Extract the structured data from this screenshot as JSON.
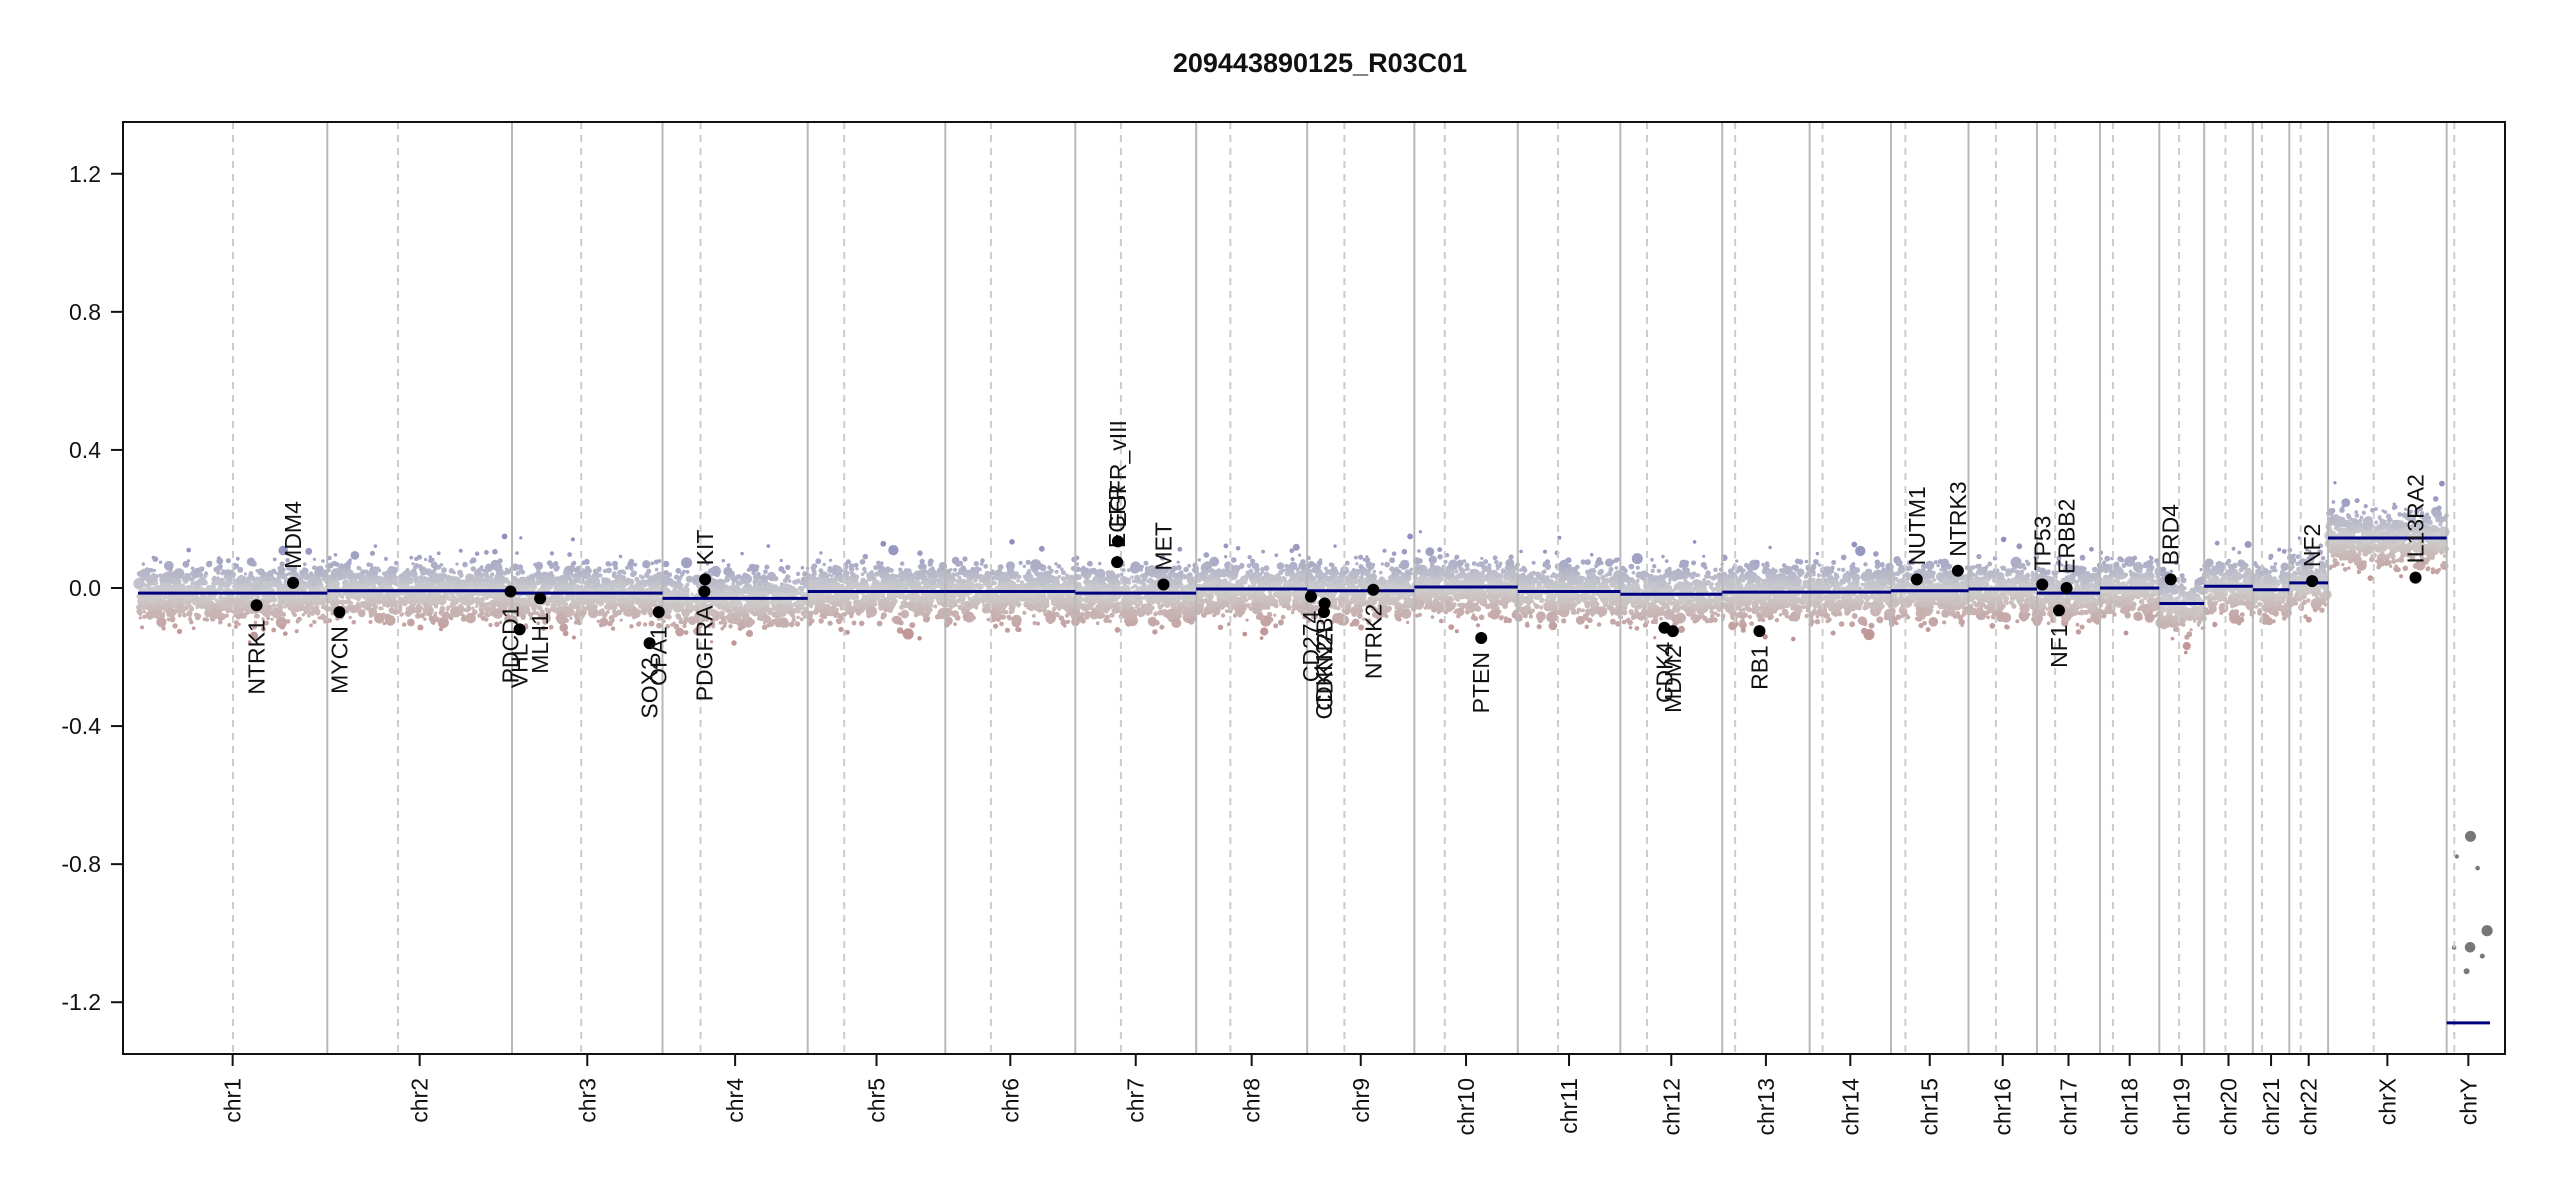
{
  "chart_data": {
    "type": "scatter",
    "title": "209443890125_R03C01",
    "xlabel": "",
    "ylabel": "",
    "ylim": [
      -1.35,
      1.35
    ],
    "yticks": [
      "1.2",
      "0.8",
      "0.4",
      "0.0",
      "-0.4",
      "-0.8",
      "-1.2"
    ],
    "grid": "vertical chromosome boundaries (solid) and centromeres (dashed)",
    "legend": "none",
    "colors": {
      "positive": "#8f90bf",
      "neutral": "#cfcfcf",
      "negative": "#bf8f8f",
      "segment": "#000080",
      "gene_point": "#000000",
      "boundary": "#b8b8b8",
      "centromere": "#cccccc"
    },
    "chromosomes": [
      {
        "name": "chr1",
        "length": 249,
        "centromere": 125
      },
      {
        "name": "chr2",
        "length": 243,
        "centromere": 93
      },
      {
        "name": "chr3",
        "length": 198,
        "centromere": 91
      },
      {
        "name": "chr4",
        "length": 191,
        "centromere": 50
      },
      {
        "name": "chr5",
        "length": 181,
        "centromere": 48
      },
      {
        "name": "chr6",
        "length": 171,
        "centromere": 60
      },
      {
        "name": "chr7",
        "length": 159,
        "centromere": 60
      },
      {
        "name": "chr8",
        "length": 146,
        "centromere": 45
      },
      {
        "name": "chr9",
        "length": 141,
        "centromere": 49
      },
      {
        "name": "chr10",
        "length": 136,
        "centromere": 40
      },
      {
        "name": "chr11",
        "length": 135,
        "centromere": 53
      },
      {
        "name": "chr12",
        "length": 134,
        "centromere": 35
      },
      {
        "name": "chr13",
        "length": 115,
        "centromere": 17
      },
      {
        "name": "chr14",
        "length": 107,
        "centromere": 17
      },
      {
        "name": "chr15",
        "length": 102,
        "centromere": 19
      },
      {
        "name": "chr16",
        "length": 90,
        "centromere": 36
      },
      {
        "name": "chr17",
        "length": 83,
        "centromere": 24
      },
      {
        "name": "chr18",
        "length": 78,
        "centromere": 17
      },
      {
        "name": "chr19",
        "length": 59,
        "centromere": 26
      },
      {
        "name": "chr20",
        "length": 64,
        "centromere": 28
      },
      {
        "name": "chr21",
        "length": 48,
        "centromere": 12
      },
      {
        "name": "chr22",
        "length": 51,
        "centromere": 15
      },
      {
        "name": "chrX",
        "length": 156,
        "centromere": 60
      },
      {
        "name": "chrY",
        "length": 57,
        "centromere": 10
      }
    ],
    "segments": [
      {
        "chr": "chr1",
        "start": 0,
        "end": 249,
        "value": -0.015
      },
      {
        "chr": "chr2",
        "start": 0,
        "end": 243,
        "value": -0.008
      },
      {
        "chr": "chr3",
        "start": 0,
        "end": 198,
        "value": -0.015
      },
      {
        "chr": "chr4",
        "start": 0,
        "end": 191,
        "value": -0.03
      },
      {
        "chr": "chr5",
        "start": 0,
        "end": 181,
        "value": -0.01
      },
      {
        "chr": "chr6",
        "start": 0,
        "end": 171,
        "value": -0.01
      },
      {
        "chr": "chr7",
        "start": 0,
        "end": 159,
        "value": -0.015
      },
      {
        "chr": "chr8",
        "start": 0,
        "end": 146,
        "value": -0.003
      },
      {
        "chr": "chr9",
        "start": 0,
        "end": 141,
        "value": -0.008
      },
      {
        "chr": "chr10",
        "start": 0,
        "end": 136,
        "value": 0.003
      },
      {
        "chr": "chr11",
        "start": 0,
        "end": 135,
        "value": -0.01
      },
      {
        "chr": "chr12",
        "start": 0,
        "end": 134,
        "value": -0.018
      },
      {
        "chr": "chr13",
        "start": 0,
        "end": 115,
        "value": -0.012
      },
      {
        "chr": "chr14",
        "start": 0,
        "end": 107,
        "value": -0.012
      },
      {
        "chr": "chr15",
        "start": 0,
        "end": 102,
        "value": -0.008
      },
      {
        "chr": "chr16",
        "start": 0,
        "end": 90,
        "value": -0.003
      },
      {
        "chr": "chr17",
        "start": 0,
        "end": 83,
        "value": -0.015
      },
      {
        "chr": "chr18",
        "start": 0,
        "end": 78,
        "value": 0.0
      },
      {
        "chr": "chr19",
        "start": 0,
        "end": 59,
        "value": -0.045
      },
      {
        "chr": "chr20",
        "start": 0,
        "end": 64,
        "value": 0.005
      },
      {
        "chr": "chr21",
        "start": 0,
        "end": 48,
        "value": -0.005
      },
      {
        "chr": "chr22",
        "start": 0,
        "end": 51,
        "value": 0.015
      },
      {
        "chr": "chrX",
        "start": 0,
        "end": 156,
        "value": 0.145
      },
      {
        "chr": "chrY",
        "start": 0,
        "end": 57,
        "value": -1.26
      }
    ],
    "genes": [
      {
        "name": "NTRK1",
        "chr": "chr1",
        "pos": 156,
        "value": -0.05
      },
      {
        "name": "MDM4",
        "chr": "chr1",
        "pos": 204,
        "value": 0.015
      },
      {
        "name": "MYCN",
        "chr": "chr2",
        "pos": 16,
        "value": -0.07
      },
      {
        "name": "PDCD1",
        "chr": "chr2",
        "pos": 241,
        "value": -0.01
      },
      {
        "name": "VHL",
        "chr": "chr3",
        "pos": 10,
        "value": -0.12
      },
      {
        "name": "MLH1",
        "chr": "chr3",
        "pos": 37,
        "value": -0.03
      },
      {
        "name": "SOX2",
        "chr": "chr3",
        "pos": 181,
        "value": -0.16
      },
      {
        "name": "OPA1",
        "chr": "chr3",
        "pos": 193,
        "value": -0.07
      },
      {
        "name": "PDGFRA",
        "chr": "chr4",
        "pos": 55,
        "value": -0.01
      },
      {
        "name": "KIT",
        "chr": "chr4",
        "pos": 56,
        "value": 0.025
      },
      {
        "name": "EGFR",
        "chr": "chr7",
        "pos": 55,
        "value": 0.075
      },
      {
        "name": "EGFR_vIII",
        "chr": "chr7",
        "pos": 56,
        "value": 0.135
      },
      {
        "name": "MET",
        "chr": "chr7",
        "pos": 116,
        "value": 0.01
      },
      {
        "name": "CD274",
        "chr": "chr9",
        "pos": 5,
        "value": -0.025
      },
      {
        "name": "CDKN2A",
        "chr": "chr9",
        "pos": 22,
        "value": -0.07
      },
      {
        "name": "CDKN2B",
        "chr": "chr9",
        "pos": 23,
        "value": -0.045
      },
      {
        "name": "NTRK2",
        "chr": "chr9",
        "pos": 87,
        "value": -0.005
      },
      {
        "name": "PTEN",
        "chr": "chr10",
        "pos": 88,
        "value": -0.145
      },
      {
        "name": "CDK4",
        "chr": "chr12",
        "pos": 58,
        "value": -0.115
      },
      {
        "name": "MDM2",
        "chr": "chr12",
        "pos": 69,
        "value": -0.125
      },
      {
        "name": "RB1",
        "chr": "chr13",
        "pos": 49,
        "value": -0.125
      },
      {
        "name": "NUTM1",
        "chr": "chr15",
        "pos": 34,
        "value": 0.025
      },
      {
        "name": "NTRK3",
        "chr": "chr15",
        "pos": 88,
        "value": 0.05
      },
      {
        "name": "TP53",
        "chr": "chr17",
        "pos": 7,
        "value": 0.01
      },
      {
        "name": "NF1",
        "chr": "chr17",
        "pos": 29,
        "value": -0.065
      },
      {
        "name": "ERBB2",
        "chr": "chr17",
        "pos": 39,
        "value": 0.0
      },
      {
        "name": "BRD4",
        "chr": "chr19",
        "pos": 15,
        "value": 0.025
      },
      {
        "name": "NF2",
        "chr": "chr22",
        "pos": 30,
        "value": 0.02
      },
      {
        "name": "IL13RA2",
        "chr": "chrX",
        "pos": 115,
        "value": 0.03
      }
    ]
  }
}
